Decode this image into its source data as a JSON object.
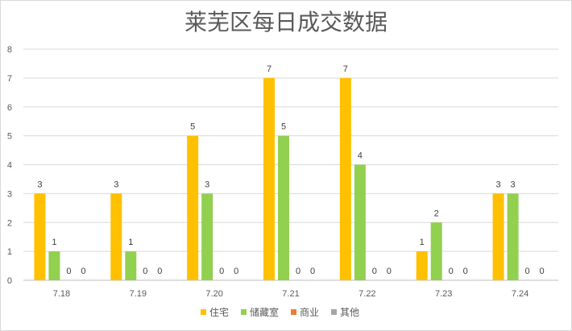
{
  "chart_data": {
    "type": "bar",
    "title": "莱芜区每日成交数据",
    "categories": [
      "7.18",
      "7.19",
      "7.20",
      "7.21",
      "7.22",
      "7.23",
      "7.24"
    ],
    "series": [
      {
        "name": "住宅",
        "color": "#FFC000",
        "values": [
          3,
          3,
          5,
          7,
          7,
          1,
          3
        ]
      },
      {
        "name": "储藏室",
        "color": "#92D050",
        "values": [
          1,
          1,
          3,
          5,
          4,
          2,
          3
        ]
      },
      {
        "name": "商业",
        "color": "#ED7D31",
        "values": [
          0,
          0,
          0,
          0,
          0,
          0,
          0
        ]
      },
      {
        "name": "其他",
        "color": "#A5A5A5",
        "values": [
          0,
          0,
          0,
          0,
          0,
          0,
          0
        ]
      }
    ],
    "ylim": [
      0,
      8
    ],
    "yticks": [
      "0",
      "1",
      "2",
      "3",
      "4",
      "5",
      "6",
      "7",
      "8"
    ],
    "grid": true,
    "legend_position": "bottom",
    "data_labels": true
  }
}
